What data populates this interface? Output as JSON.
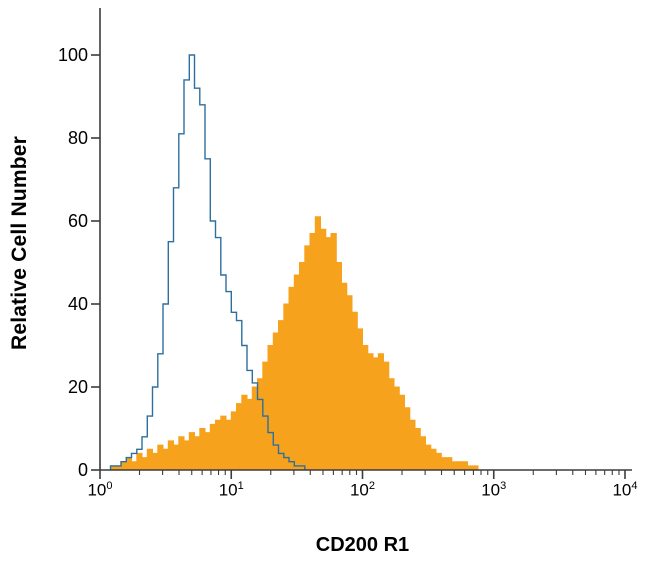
{
  "figure": {
    "background": "#ffffff"
  },
  "chart_data": {
    "type": "area",
    "chart_kind": "flow-cytometry-histogram",
    "title": "",
    "xlabel": "CD200 R1",
    "ylabel": "Relative Cell Number",
    "x_scale": "log10",
    "x_decades": [
      0,
      4
    ],
    "ylim": [
      0,
      100
    ],
    "yticks": [
      0,
      20,
      40,
      60,
      80,
      100
    ],
    "xtick_base": "10",
    "xtick_exponents": [
      0,
      1,
      2,
      3,
      4
    ],
    "grid": false,
    "legend": "none",
    "axis_color": "#3c3c3c",
    "bin_log_start": 0,
    "bin_log_width": 0.04,
    "series": [
      {
        "name": "filled-stained-histogram",
        "style": "filled",
        "color": "#f6a21d",
        "values": [
          0,
          0,
          1,
          1,
          2,
          3,
          2,
          4,
          3,
          5,
          4,
          6,
          5,
          7,
          6,
          8,
          7,
          9,
          8,
          10,
          9,
          11,
          12,
          13,
          12,
          14,
          16,
          18,
          17,
          20,
          22,
          26,
          30,
          33,
          36,
          40,
          44,
          47,
          50,
          54,
          57,
          61,
          58,
          56,
          57,
          50,
          45,
          42,
          38,
          34,
          30,
          28,
          27,
          28,
          26,
          22,
          20,
          18,
          15,
          12,
          10,
          8,
          6,
          5,
          4,
          3,
          3,
          2,
          2,
          2,
          1,
          1,
          0
        ]
      },
      {
        "name": "open-control-histogram",
        "style": "open",
        "color": "#2e6f9e",
        "values": [
          0,
          0,
          1,
          1,
          2,
          3,
          4,
          5,
          8,
          13,
          20,
          28,
          40,
          55,
          68,
          81,
          94,
          100,
          92,
          88,
          75,
          60,
          56,
          47,
          43,
          38,
          36,
          30,
          24,
          21,
          17,
          13,
          9,
          6,
          4,
          3,
          2,
          1,
          1,
          0
        ]
      }
    ]
  }
}
